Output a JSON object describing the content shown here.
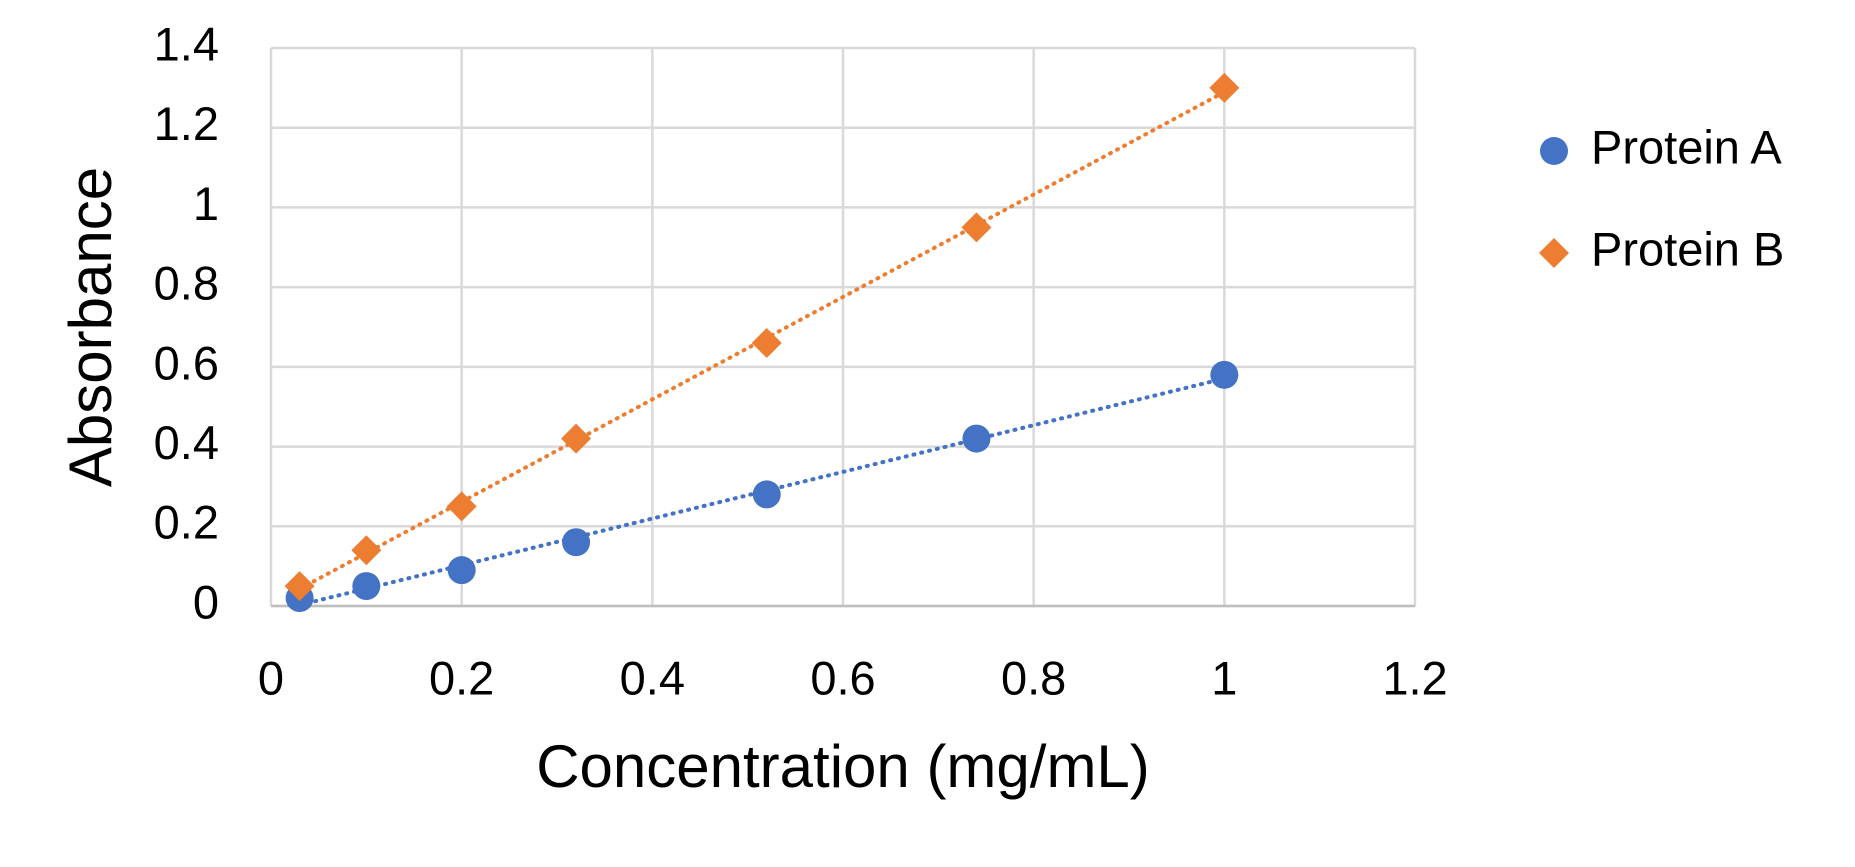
{
  "chart_data": {
    "type": "scatter",
    "x_label": "Concentration (mg/mL)",
    "y_label": "Absorbance",
    "x": [
      0.03,
      0.1,
      0.2,
      0.32,
      0.52,
      0.74,
      1.0
    ],
    "series": [
      {
        "name": "Protein A",
        "color": "#4472c4",
        "marker": "circle",
        "values": [
          0.02,
          0.05,
          0.09,
          0.16,
          0.28,
          0.42,
          0.58
        ]
      },
      {
        "name": "Protein B",
        "color": "#ed7d31",
        "marker": "diamond",
        "values": [
          0.05,
          0.14,
          0.25,
          0.42,
          0.66,
          0.95,
          1.3
        ]
      }
    ],
    "trendline": "linear",
    "xlim": [
      0,
      1.2
    ],
    "xticks": [
      0,
      0.2,
      0.4,
      0.6,
      0.8,
      1,
      1.2
    ],
    "ylim": [
      0,
      1.4
    ],
    "yticks": [
      0,
      0.2,
      0.4,
      0.6,
      0.8,
      1,
      1.2,
      1.4
    ],
    "grid": true,
    "legend": "right"
  }
}
